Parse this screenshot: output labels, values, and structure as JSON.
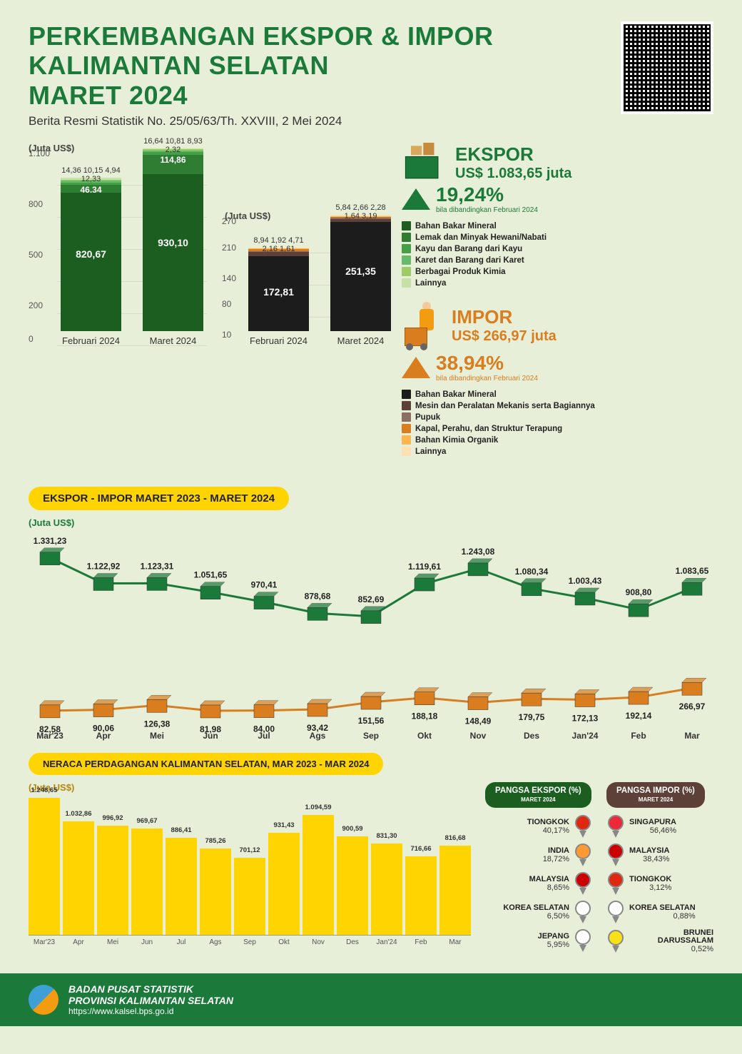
{
  "header": {
    "title_l1": "PERKEMBANGAN EKSPOR & IMPOR",
    "title_l2": "KALIMANTAN SELATAN",
    "title_l3": "MARET 2024",
    "subtitle": "Berita Resmi Statistik No. 25/05/63/Th. XXVIII, 2 Mei 2024"
  },
  "ekspor_bar": {
    "unit": "(Juta US$)",
    "ylim": [
      0,
      1100
    ],
    "yticks": [
      0,
      200,
      500,
      800,
      "1.100"
    ],
    "colors": [
      "#1b5e20",
      "#2e7d32",
      "#43a047",
      "#66bb6a",
      "#9ccc65",
      "#c5e1a5"
    ],
    "periods": [
      {
        "label": "Februari 2024",
        "main": "820,67",
        "segs": [
          820.67,
          46.34,
          14.36,
          10.15,
          4.94,
          12.33
        ],
        "seg2": "46,34",
        "tops": "14,36 10,15 4,94  12,33"
      },
      {
        "label": "Maret 2024",
        "main": "930,10",
        "segs": [
          930.1,
          114.86,
          16.64,
          10.81,
          8.93,
          2.32
        ],
        "seg2": "114,86",
        "tops": "16,64 10,81 8,93  2,32"
      }
    ]
  },
  "impor_bar": {
    "unit": "(Juta US$)",
    "ylim": [
      0,
      270
    ],
    "yticks": [
      10,
      80,
      140,
      210,
      270
    ],
    "colors": [
      "#1c1c1c",
      "#5d4037",
      "#8d6e63",
      "#d97d1f",
      "#ffb74d",
      "#ffe0b2"
    ],
    "periods": [
      {
        "label": "Februari 2024",
        "main": "172,81",
        "segs": [
          172.81,
          8.94,
          1.92,
          4.71,
          2.16,
          1.61
        ],
        "tops": "8,94 1,92  4,71 2,16  1,61"
      },
      {
        "label": "Maret 2024",
        "main": "251,35",
        "segs": [
          251.35,
          5.84,
          2.66,
          2.28,
          1.64,
          3.19
        ],
        "tops": "5,84 2,66  2,28 1,64  3,19"
      }
    ]
  },
  "ekspor_stat": {
    "title": "EKSPOR",
    "value": "US$ 1.083,65 juta",
    "pct": "19,24%",
    "pct_sub": "bila dibandingkan Februari 2024",
    "color": "#1b7a3a",
    "legend": [
      {
        "c": "#1b5e20",
        "t": "Bahan Bakar Mineral"
      },
      {
        "c": "#2e7d32",
        "t": "Lemak dan Minyak Hewani/Nabati"
      },
      {
        "c": "#43a047",
        "t": "Kayu dan Barang dari Kayu"
      },
      {
        "c": "#66bb6a",
        "t": "Karet dan Barang dari Karet"
      },
      {
        "c": "#9ccc65",
        "t": "Berbagai Produk Kimia"
      },
      {
        "c": "#c5e1a5",
        "t": "Lainnya"
      }
    ]
  },
  "impor_stat": {
    "title": "IMPOR",
    "value": "US$ 266,97 juta",
    "pct": "38,94%",
    "pct_sub": "bila dibandingkan Februari 2024",
    "color": "#d97d1f",
    "legend": [
      {
        "c": "#1c1c1c",
        "t": "Bahan Bakar Mineral"
      },
      {
        "c": "#5d4037",
        "t": "Mesin dan Peralatan Mekanis serta Bagiannya"
      },
      {
        "c": "#8d6e63",
        "t": "Pupuk"
      },
      {
        "c": "#d97d1f",
        "t": "Kapal, Perahu, dan Struktur Terapung"
      },
      {
        "c": "#ffb74d",
        "t": "Bahan Kimia Organik"
      },
      {
        "c": "#ffe0b2",
        "t": "Lainnya"
      }
    ]
  },
  "trend": {
    "title": "EKSPOR - IMPOR MARET 2023 - MARET 2024",
    "unit": "(Juta US$)",
    "months": [
      "Mar'23",
      "Apr",
      "Mei",
      "Jun",
      "Jul",
      "Ags",
      "Sep",
      "Okt",
      "Nov",
      "Des",
      "Jan'24",
      "Feb",
      "Mar"
    ],
    "ekspor": {
      "color": "#1b7a3a",
      "vals": [
        "1.331,23",
        "1.122,92",
        "1.123,31",
        "1.051,65",
        "970,41",
        "878,68",
        "852,69",
        "1.119,61",
        "1.243,08",
        "1.080,34",
        "1.003,43",
        "908,80",
        "1.083,65"
      ],
      "num": [
        1331.23,
        1122.92,
        1123.31,
        1051.65,
        970.41,
        878.68,
        852.69,
        1119.61,
        1243.08,
        1080.34,
        1003.43,
        908.8,
        1083.65
      ]
    },
    "impor": {
      "color": "#d97d1f",
      "vals": [
        "82,58",
        "90,06",
        "126,38",
        "81,98",
        "84,00",
        "93,42",
        "151,56",
        "188,18",
        "148,49",
        "179,75",
        "172,13",
        "192,14",
        "266,97"
      ],
      "num": [
        82.58,
        90.06,
        126.38,
        81.98,
        84.0,
        93.42,
        151.56,
        188.18,
        148.49,
        179.75,
        172.13,
        192.14,
        266.97
      ]
    }
  },
  "neraca": {
    "title": "NERACA PERDAGANGAN KALIMANTAN SELATAN, MAR 2023 - MAR 2024",
    "unit": "(Juta US$)",
    "color": "#ffd400",
    "months": [
      "Mar'23",
      "Apr",
      "Mei",
      "Jun",
      "Jul",
      "Ags",
      "Sep",
      "Okt",
      "Nov",
      "Des",
      "Jan'24",
      "Feb",
      "Mar"
    ],
    "vals": [
      "1.248,65",
      "1.032,86",
      "996,92",
      "969,67",
      "886,41",
      "785,26",
      "701,12",
      "931,43",
      "1.094,59",
      "900,59",
      "831,30",
      "716,66",
      "816,68"
    ],
    "num": [
      1248.65,
      1032.86,
      996.92,
      969.67,
      886.41,
      785.26,
      701.12,
      931.43,
      1094.59,
      900.59,
      831.3,
      716.66,
      816.68
    ],
    "max": 1300
  },
  "pangsa_ekspor": {
    "title": "PANGSA EKSPOR (%)",
    "sub": "MARET 2024",
    "bg": "#1b5e20",
    "items": [
      {
        "name": "TIONGKOK",
        "pct": "40,17%",
        "flag": "#de2910"
      },
      {
        "name": "INDIA",
        "pct": "18,72%",
        "flag": "#ff9933"
      },
      {
        "name": "MALAYSIA",
        "pct": "8,65%",
        "flag": "#cc0001"
      },
      {
        "name": "KOREA SELATAN",
        "pct": "6,50%",
        "flag": "#ffffff"
      },
      {
        "name": "JEPANG",
        "pct": "5,95%",
        "flag": "#ffffff"
      }
    ]
  },
  "pangsa_impor": {
    "title": "PANGSA IMPOR (%)",
    "sub": "MARET 2024",
    "bg": "#5d4037",
    "items": [
      {
        "name": "SINGAPURA",
        "pct": "56,46%",
        "flag": "#ed2939"
      },
      {
        "name": "MALAYSIA",
        "pct": "38,43%",
        "flag": "#cc0001"
      },
      {
        "name": "TIONGKOK",
        "pct": "3,12%",
        "flag": "#de2910"
      },
      {
        "name": "KOREA SELATAN",
        "pct": "0,88%",
        "flag": "#ffffff"
      },
      {
        "name": "BRUNEI DARUSSALAM",
        "pct": "0,52%",
        "flag": "#f7e017"
      }
    ]
  },
  "footer": {
    "org": "BADAN PUSAT STATISTIK",
    "prov": "PROVINSI KALIMANTAN SELATAN",
    "url": "https://www.kalsel.bps.go.id"
  }
}
